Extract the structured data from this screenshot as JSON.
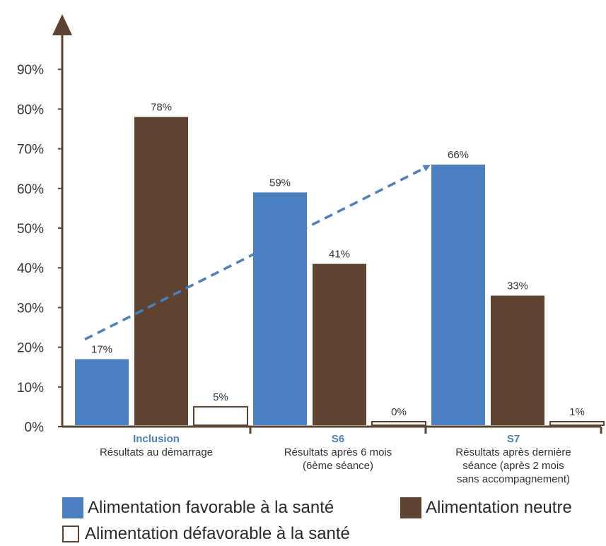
{
  "chart_data": {
    "type": "bar",
    "ylim": [
      0,
      100
    ],
    "yticks": [
      "0%",
      "10%",
      "20%",
      "30%",
      "40%",
      "50%",
      "60%",
      "70%",
      "80%",
      "90%"
    ],
    "groups": [
      {
        "title": "Inclusion",
        "subtitle": [
          "Résultats au démarrage"
        ]
      },
      {
        "title": "S6",
        "subtitle": [
          "Résultats après 6 mois",
          "(6ème séance)"
        ]
      },
      {
        "title": "S7",
        "subtitle": [
          "Résultats après dernière",
          "séance (après 2 mois",
          "sans accompagnement)"
        ]
      }
    ],
    "series": [
      {
        "name": "Alimentation favorable à la santé",
        "values": [
          17,
          59,
          66
        ],
        "labels": [
          "17%",
          "59%",
          "66%"
        ],
        "color": "#4a7fc1"
      },
      {
        "name": "Alimentation neutre",
        "values": [
          78,
          41,
          33
        ],
        "labels": [
          "78%",
          "41%",
          "33%"
        ],
        "color": "#5e4430"
      },
      {
        "name": "Alimentation défavorable à la santé",
        "values": [
          5,
          0,
          1
        ],
        "labels": [
          "5%",
          "0%",
          "1%"
        ],
        "color": "#ffffff"
      }
    ],
    "trend_arrow": {
      "from": [
        0,
        17
      ],
      "to": [
        2,
        66
      ]
    }
  }
}
